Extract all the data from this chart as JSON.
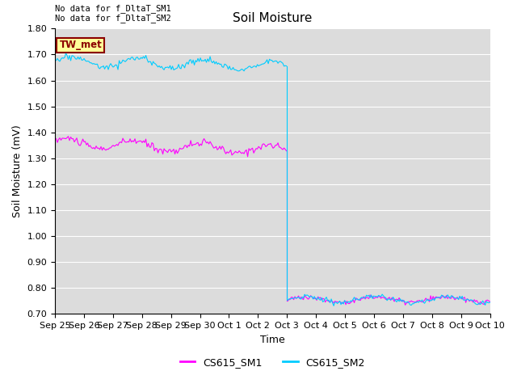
{
  "title": "Soil Moisture",
  "ylabel": "Soil Moisture (mV)",
  "xlabel": "Time",
  "ylim": [
    0.7,
    1.8
  ],
  "yticks": [
    0.7,
    0.8,
    0.9,
    1.0,
    1.1,
    1.2,
    1.3,
    1.4,
    1.5,
    1.6,
    1.7,
    1.8
  ],
  "color_sm1": "#FF00FF",
  "color_sm2": "#00CCFF",
  "bg_color": "#DCDCDC",
  "note_text": "No data for f_DltaT_SM1\nNo data for f_DltaT_SM2",
  "legend_box_text": "TW_met",
  "legend_box_facecolor": "#FFFF99",
  "legend_box_edgecolor": "#8B0000",
  "legend_sm1": "CS615_SM1",
  "legend_sm2": "CS615_SM2",
  "drop_day": 8,
  "total_days": 15,
  "sm1_base_pre": 1.36,
  "sm1_base_post": 0.755,
  "sm2_base_pre": 1.675,
  "sm2_base_post": 0.755,
  "ticklabels": [
    "Sep 25",
    "Sep 26",
    "Sep 27",
    "Sep 28",
    "Sep 29",
    "Sep 30",
    "Oct 1",
    "Oct 2",
    "Oct 3",
    "Oct 4",
    "Oct 5",
    "Oct 6",
    "Oct 7",
    "Oct 8",
    "Oct 9",
    "Oct 10"
  ],
  "grid_color": "#FFFFFF",
  "font_size_ticks": 8,
  "font_size_title": 11,
  "font_size_label": 9
}
